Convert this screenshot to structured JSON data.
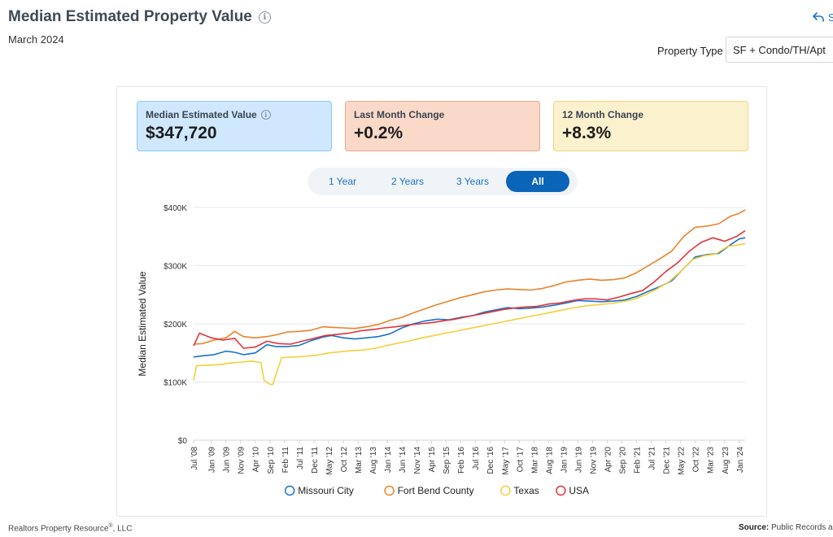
{
  "header": {
    "title": "Median Estimated Property Value",
    "subtitle": "March 2024",
    "share_label": "S",
    "property_type_label": "Property Type",
    "property_type_value": "SF + Condo/TH/Apt"
  },
  "cards": [
    {
      "label": "Median Estimated Value",
      "value": "$347,720"
    },
    {
      "label": "Last Month Change",
      "value": "+0.2%"
    },
    {
      "label": "12 Month Change",
      "value": "+8.3%"
    }
  ],
  "ranges": [
    "1 Year",
    "2 Years",
    "3 Years",
    "All"
  ],
  "active_range": "All",
  "footer": {
    "left": "Realtors Property Resource",
    "left_mark": "®",
    "left_suffix": ", LLC",
    "right_label": "Source:",
    "right_text": "Public Records a"
  },
  "colors": {
    "Missouri City": "#1a73c8",
    "Fort Bend County": "#e8842c",
    "Texas": "#f5cf3a",
    "USA": "#e0353c"
  },
  "chart_data": {
    "type": "line",
    "title": "",
    "xlabel": "",
    "ylabel": "Median Estimated Value",
    "ylim": [
      0,
      400000
    ],
    "yticks": [
      "$0",
      "$100K",
      "$200K",
      "$300K",
      "$400K"
    ],
    "yticks_values": [
      0,
      100000,
      200000,
      300000,
      400000
    ],
    "x_range": [
      "2008-07",
      "2024-03"
    ],
    "xticks": [
      "Jul '08",
      "Jan '09",
      "Jun '09",
      "Nov '09",
      "Apr '10",
      "Sep '10",
      "Feb '11",
      "Jul '11",
      "Dec '11",
      "May '12",
      "Oct '12",
      "Mar '13",
      "Aug '13",
      "Jan '14",
      "Jun '14",
      "Nov '14",
      "Apr '15",
      "Sep '15",
      "Feb '16",
      "Jul '16",
      "Dec '16",
      "May '17",
      "Oct '17",
      "Mar '18",
      "Aug '18",
      "Jan '19",
      "Jun '19",
      "Nov '19",
      "Apr '20",
      "Sep '20",
      "Feb '21",
      "Jul '21",
      "Dec '21",
      "May '22",
      "Oct '22",
      "Mar '23",
      "Aug '23",
      "Jan '24"
    ],
    "grid": true,
    "legend_position": "bottom",
    "series": [
      {
        "name": "Missouri City",
        "x": [
          "2008-07",
          "2008-10",
          "2009-02",
          "2009-06",
          "2009-09",
          "2009-12",
          "2010-04",
          "2010-08",
          "2010-11",
          "2011-03",
          "2011-07",
          "2011-11",
          "2012-03",
          "2012-06",
          "2012-10",
          "2013-02",
          "2013-06",
          "2013-10",
          "2014-02",
          "2014-06",
          "2014-10",
          "2015-02",
          "2015-06",
          "2015-10",
          "2016-02",
          "2016-06",
          "2016-10",
          "2017-02",
          "2017-06",
          "2017-10",
          "2018-02",
          "2018-06",
          "2018-10",
          "2019-02",
          "2019-06",
          "2019-10",
          "2020-02",
          "2020-06",
          "2020-10",
          "2021-02",
          "2021-06",
          "2021-10",
          "2022-02",
          "2022-06",
          "2022-10",
          "2023-02",
          "2023-06",
          "2023-10",
          "2024-01",
          "2024-03"
        ],
        "y": [
          143000,
          145000,
          147000,
          153000,
          151000,
          147000,
          150000,
          164000,
          161000,
          161000,
          163000,
          171000,
          177000,
          180000,
          176000,
          174000,
          176000,
          178000,
          183000,
          193000,
          200000,
          205000,
          208000,
          207000,
          211000,
          214000,
          220000,
          224000,
          228000,
          226000,
          227000,
          229000,
          232000,
          236000,
          240000,
          239000,
          238000,
          239000,
          241000,
          247000,
          256000,
          264000,
          274000,
          295000,
          315000,
          319000,
          321000,
          336000,
          346000,
          348000
        ]
      },
      {
        "name": "Fort Bend County",
        "x": [
          "2008-07",
          "2008-10",
          "2009-02",
          "2009-06",
          "2009-09",
          "2009-12",
          "2010-04",
          "2010-08",
          "2010-11",
          "2011-03",
          "2011-07",
          "2011-11",
          "2012-03",
          "2012-06",
          "2012-10",
          "2013-02",
          "2013-06",
          "2013-10",
          "2014-02",
          "2014-06",
          "2014-10",
          "2015-02",
          "2015-06",
          "2015-10",
          "2016-02",
          "2016-06",
          "2016-10",
          "2017-02",
          "2017-06",
          "2017-10",
          "2018-02",
          "2018-06",
          "2018-10",
          "2019-02",
          "2019-06",
          "2019-10",
          "2020-02",
          "2020-06",
          "2020-10",
          "2021-02",
          "2021-06",
          "2021-10",
          "2022-02",
          "2022-06",
          "2022-10",
          "2023-02",
          "2023-06",
          "2023-10",
          "2024-01",
          "2024-03"
        ],
        "y": [
          165000,
          166000,
          172000,
          176000,
          187000,
          178000,
          176000,
          178000,
          181000,
          186000,
          187000,
          189000,
          195000,
          194000,
          193000,
          192000,
          195000,
          199000,
          206000,
          211000,
          219000,
          226000,
          233000,
          239000,
          245000,
          250000,
          255000,
          258000,
          260000,
          259000,
          258000,
          261000,
          266000,
          272000,
          275000,
          277000,
          275000,
          276000,
          279000,
          288000,
          300000,
          312000,
          325000,
          350000,
          366000,
          368000,
          372000,
          385000,
          390000,
          396000
        ]
      },
      {
        "name": "Texas",
        "x": [
          "2008-07",
          "2008-08",
          "2008-12",
          "2009-04",
          "2009-08",
          "2009-11",
          "2010-03",
          "2010-06",
          "2010-07",
          "2010-09",
          "2010-10",
          "2011-01",
          "2011-05",
          "2011-09",
          "2012-01",
          "2012-05",
          "2012-09",
          "2013-01",
          "2013-05",
          "2013-09",
          "2014-01",
          "2014-05",
          "2014-09",
          "2015-01",
          "2015-05",
          "2015-09",
          "2016-01",
          "2016-05",
          "2016-09",
          "2017-01",
          "2017-05",
          "2017-09",
          "2018-01",
          "2018-05",
          "2018-09",
          "2019-01",
          "2019-05",
          "2019-09",
          "2020-01",
          "2020-05",
          "2020-09",
          "2021-01",
          "2021-05",
          "2021-09",
          "2022-01",
          "2022-05",
          "2022-09",
          "2023-01",
          "2023-05",
          "2023-09",
          "2024-01",
          "2024-03"
        ],
        "y": [
          103000,
          128000,
          129000,
          130000,
          133000,
          134000,
          136000,
          133000,
          103000,
          96000,
          96000,
          142000,
          143000,
          144000,
          146000,
          150000,
          152000,
          154000,
          155000,
          158000,
          163000,
          167000,
          171000,
          176000,
          180000,
          184000,
          188000,
          192000,
          196000,
          200000,
          204000,
          208000,
          212000,
          216000,
          220000,
          224000,
          228000,
          231000,
          233000,
          235000,
          238000,
          242000,
          250000,
          260000,
          272000,
          290000,
          310000,
          317000,
          320000,
          333000,
          336000,
          338000
        ]
      },
      {
        "name": "USA",
        "x": [
          "2008-07",
          "2008-09",
          "2009-01",
          "2009-05",
          "2009-09",
          "2009-12",
          "2010-04",
          "2010-08",
          "2010-12",
          "2011-04",
          "2011-08",
          "2011-12",
          "2012-04",
          "2012-08",
          "2012-12",
          "2013-04",
          "2013-08",
          "2013-12",
          "2014-04",
          "2014-08",
          "2014-12",
          "2015-04",
          "2015-08",
          "2015-12",
          "2016-04",
          "2016-08",
          "2016-12",
          "2017-04",
          "2017-08",
          "2017-12",
          "2018-04",
          "2018-08",
          "2018-12",
          "2019-04",
          "2019-08",
          "2019-12",
          "2020-04",
          "2020-08",
          "2020-12",
          "2021-04",
          "2021-08",
          "2021-12",
          "2022-04",
          "2022-08",
          "2022-12",
          "2023-04",
          "2023-08",
          "2023-12",
          "2024-03"
        ],
        "y": [
          162000,
          184000,
          176000,
          172000,
          175000,
          158000,
          160000,
          170000,
          166000,
          165000,
          170000,
          175000,
          180000,
          182000,
          184000,
          188000,
          190000,
          193000,
          195000,
          198000,
          200000,
          202000,
          205000,
          208000,
          212000,
          216000,
          220000,
          224000,
          227000,
          229000,
          230000,
          234000,
          236000,
          240000,
          243000,
          243000,
          241000,
          246000,
          252000,
          257000,
          272000,
          290000,
          305000,
          325000,
          340000,
          348000,
          342000,
          350000,
          360000
        ]
      }
    ]
  }
}
